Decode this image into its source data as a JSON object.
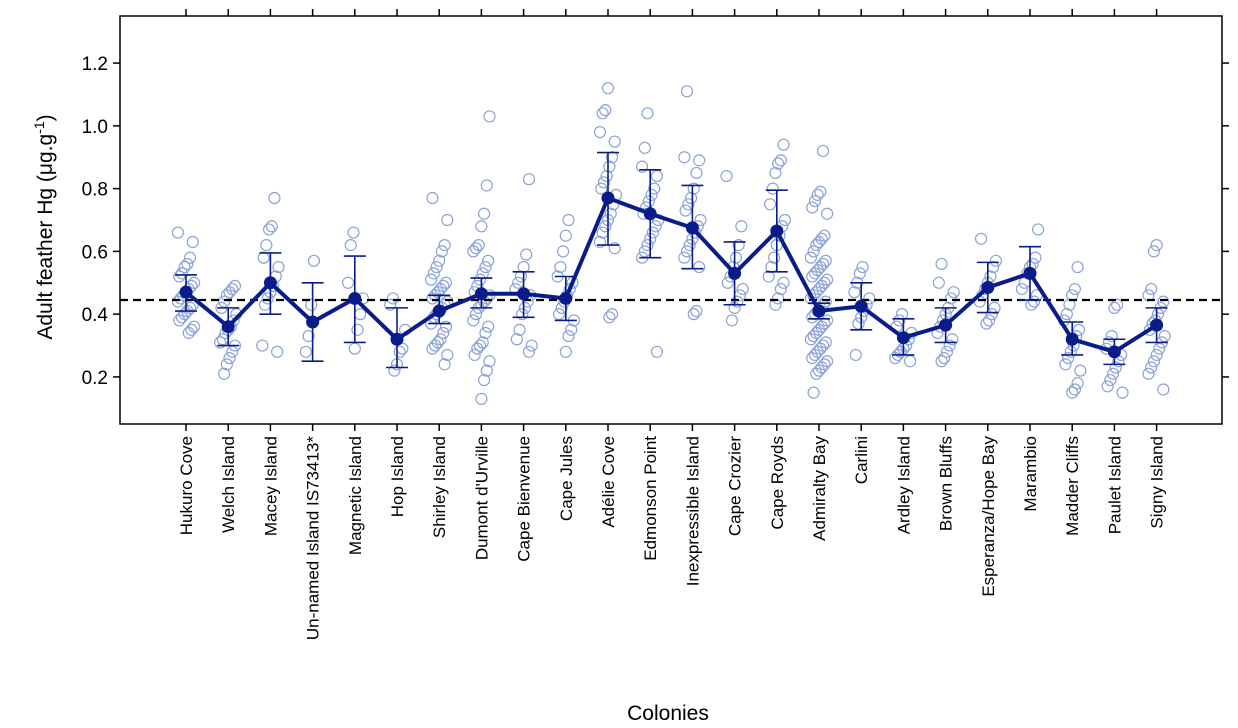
{
  "chart_data": {
    "type": "scatter",
    "title": "",
    "ylabel": "Adult feather Hg (μg.g",
    "ylabel_sup": "-1",
    "ylabel_close": ")",
    "xlabel": "Colonies",
    "ylim": [
      0.05,
      1.35
    ],
    "yticks": [
      0.2,
      0.4,
      0.6,
      0.8,
      1.0,
      1.2
    ],
    "ytick_labels": [
      "0.2",
      "0.4",
      "0.6",
      "0.8",
      "1.0",
      "1.2"
    ],
    "reference_line": 0.445,
    "grid": false,
    "colors": {
      "points": "#8aa2d6",
      "mean": "#0a1c8a",
      "reference": "#000000"
    },
    "categories": [
      "Hukuro Cove",
      "Welch Island",
      "Macey Island",
      "Un-named Island IS73413*",
      "Magnetic Island",
      "Hop Island",
      "Shirley Island",
      "Dumont d'Urville",
      "Cape Bienvenue",
      "Cape Jules",
      "Adélie Cove",
      "Edmonson Point",
      "Inexpressible Island",
      "Cape Crozier",
      "Cape Royds",
      "Admiralty Bay",
      "Carlini",
      "Ardley Island",
      "Brown Bluffs",
      "Esperanza/Hope Bay",
      "Marambio",
      "Madder Cliffs",
      "Paulet Island",
      "Signy Island"
    ],
    "means": [
      0.47,
      0.36,
      0.5,
      0.375,
      0.45,
      0.32,
      0.41,
      0.465,
      0.465,
      0.45,
      0.77,
      0.72,
      0.675,
      0.53,
      0.665,
      0.41,
      0.425,
      0.325,
      0.365,
      0.485,
      0.53,
      0.32,
      0.28,
      0.365
    ],
    "ci_low": [
      0.41,
      0.3,
      0.4,
      0.25,
      0.31,
      0.23,
      0.37,
      0.42,
      0.39,
      0.38,
      0.62,
      0.58,
      0.545,
      0.43,
      0.535,
      0.385,
      0.35,
      0.27,
      0.31,
      0.405,
      0.445,
      0.27,
      0.24,
      0.31
    ],
    "ci_high": [
      0.525,
      0.42,
      0.595,
      0.5,
      0.585,
      0.42,
      0.46,
      0.515,
      0.535,
      0.52,
      0.915,
      0.86,
      0.81,
      0.63,
      0.795,
      0.435,
      0.5,
      0.385,
      0.42,
      0.565,
      0.615,
      0.375,
      0.32,
      0.42
    ],
    "points": [
      [
        0.66,
        0.63,
        0.58,
        0.56,
        0.55,
        0.53,
        0.52,
        0.5,
        0.49,
        0.48,
        0.47,
        0.46,
        0.45,
        0.44,
        0.43,
        0.42,
        0.41,
        0.4,
        0.39,
        0.38,
        0.36,
        0.35,
        0.34
      ],
      [
        0.49,
        0.48,
        0.47,
        0.46,
        0.44,
        0.42,
        0.4,
        0.38,
        0.36,
        0.35,
        0.34,
        0.32,
        0.31,
        0.3,
        0.28,
        0.26,
        0.24,
        0.21
      ],
      [
        0.77,
        0.68,
        0.67,
        0.62,
        0.58,
        0.55,
        0.52,
        0.49,
        0.47,
        0.45,
        0.43,
        0.3,
        0.28
      ],
      [
        0.57,
        0.43,
        0.33,
        0.28
      ],
      [
        0.66,
        0.62,
        0.5,
        0.45,
        0.4,
        0.35,
        0.29
      ],
      [
        0.45,
        0.43,
        0.35,
        0.29,
        0.28,
        0.24,
        0.22
      ],
      [
        0.77,
        0.7,
        0.62,
        0.6,
        0.57,
        0.55,
        0.53,
        0.51,
        0.5,
        0.49,
        0.48,
        0.47,
        0.46,
        0.45,
        0.44,
        0.43,
        0.42,
        0.41,
        0.4,
        0.39,
        0.37,
        0.36,
        0.34,
        0.32,
        0.31,
        0.3,
        0.29,
        0.27,
        0.24
      ],
      [
        1.03,
        0.81,
        0.72,
        0.68,
        0.62,
        0.61,
        0.6,
        0.57,
        0.55,
        0.53,
        0.51,
        0.49,
        0.47,
        0.46,
        0.45,
        0.44,
        0.43,
        0.42,
        0.4,
        0.38,
        0.36,
        0.34,
        0.31,
        0.3,
        0.29,
        0.27,
        0.25,
        0.22,
        0.19,
        0.13
      ],
      [
        0.83,
        0.59,
        0.55,
        0.52,
        0.5,
        0.48,
        0.46,
        0.44,
        0.42,
        0.4,
        0.35,
        0.32,
        0.3,
        0.28
      ],
      [
        0.7,
        0.65,
        0.6,
        0.55,
        0.52,
        0.5,
        0.48,
        0.46,
        0.44,
        0.42,
        0.4,
        0.38,
        0.35,
        0.33,
        0.28
      ],
      [
        1.12,
        1.05,
        1.04,
        0.98,
        0.95,
        0.9,
        0.87,
        0.84,
        0.82,
        0.8,
        0.78,
        0.75,
        0.72,
        0.7,
        0.68,
        0.66,
        0.63,
        0.61,
        0.4,
        0.39
      ],
      [
        1.04,
        0.93,
        0.87,
        0.84,
        0.8,
        0.78,
        0.76,
        0.74,
        0.72,
        0.7,
        0.68,
        0.66,
        0.64,
        0.62,
        0.6,
        0.58,
        0.28
      ],
      [
        1.11,
        0.9,
        0.89,
        0.85,
        0.8,
        0.77,
        0.75,
        0.73,
        0.7,
        0.68,
        0.66,
        0.64,
        0.62,
        0.6,
        0.58,
        0.55,
        0.41,
        0.4
      ],
      [
        0.84,
        0.68,
        0.62,
        0.58,
        0.55,
        0.52,
        0.5,
        0.48,
        0.46,
        0.44,
        0.42,
        0.38
      ],
      [
        0.94,
        0.89,
        0.88,
        0.85,
        0.8,
        0.75,
        0.7,
        0.68,
        0.65,
        0.62,
        0.58,
        0.55,
        0.52,
        0.5,
        0.48,
        0.45,
        0.43
      ],
      [
        0.92,
        0.79,
        0.78,
        0.76,
        0.74,
        0.72,
        0.65,
        0.64,
        0.63,
        0.62,
        0.6,
        0.58,
        0.57,
        0.56,
        0.55,
        0.54,
        0.53,
        0.52,
        0.51,
        0.5,
        0.49,
        0.48,
        0.47,
        0.46,
        0.45,
        0.44,
        0.43,
        0.42,
        0.41,
        0.4,
        0.39,
        0.38,
        0.37,
        0.36,
        0.35,
        0.34,
        0.33,
        0.32,
        0.31,
        0.3,
        0.29,
        0.28,
        0.27,
        0.26,
        0.25,
        0.24,
        0.23,
        0.22,
        0.21,
        0.15
      ],
      [
        0.55,
        0.53,
        0.5,
        0.47,
        0.45,
        0.43,
        0.41,
        0.39,
        0.37,
        0.27
      ],
      [
        0.4,
        0.38,
        0.36,
        0.34,
        0.32,
        0.3,
        0.29,
        0.28,
        0.27,
        0.26,
        0.25
      ],
      [
        0.56,
        0.5,
        0.47,
        0.45,
        0.42,
        0.4,
        0.38,
        0.36,
        0.34,
        0.32,
        0.3,
        0.28,
        0.26,
        0.25
      ],
      [
        0.64,
        0.57,
        0.55,
        0.52,
        0.5,
        0.48,
        0.46,
        0.44,
        0.42,
        0.4,
        0.38,
        0.37
      ],
      [
        0.67,
        0.58,
        0.56,
        0.55,
        0.53,
        0.5,
        0.48,
        0.46,
        0.44,
        0.43
      ],
      [
        0.55,
        0.48,
        0.46,
        0.43,
        0.4,
        0.38,
        0.35,
        0.33,
        0.3,
        0.28,
        0.26,
        0.24,
        0.22,
        0.18,
        0.16,
        0.15
      ],
      [
        0.43,
        0.42,
        0.33,
        0.31,
        0.29,
        0.27,
        0.25,
        0.23,
        0.21,
        0.19,
        0.17,
        0.15
      ],
      [
        0.62,
        0.6,
        0.48,
        0.46,
        0.44,
        0.42,
        0.4,
        0.38,
        0.37,
        0.35,
        0.33,
        0.31,
        0.29,
        0.27,
        0.25,
        0.23,
        0.21,
        0.16
      ]
    ]
  }
}
